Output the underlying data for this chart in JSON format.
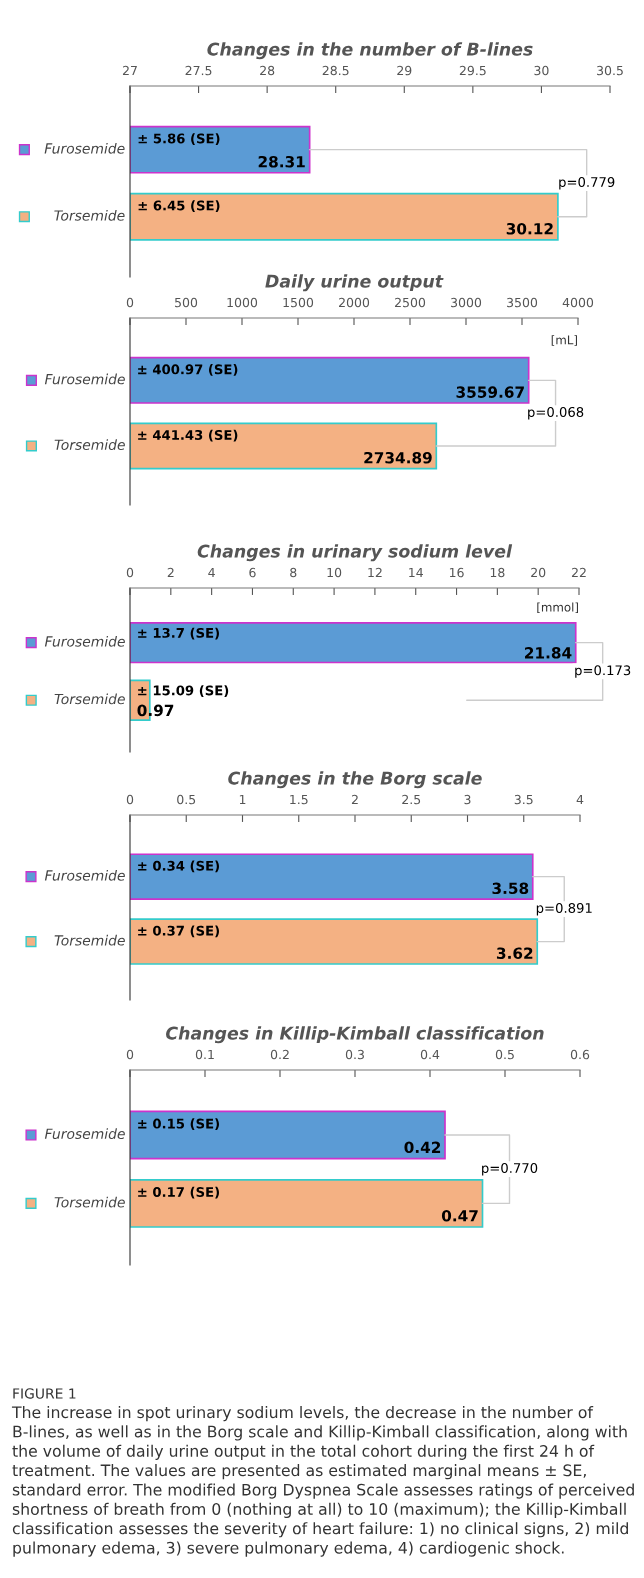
{
  "chart_data": [
    {
      "type": "bar",
      "orientation": "horizontal",
      "title": "Changes in the number of B-lines",
      "categories": [
        "Furosemide",
        "Torsemide"
      ],
      "values": [
        28.31,
        30.12
      ],
      "colors": [
        "#5b9bd5",
        "#f4b183"
      ],
      "xlim": [
        27,
        30.5
      ],
      "xticks": [
        27,
        27.5,
        28,
        28.5,
        29,
        29.5,
        30,
        30.5
      ],
      "data_labels": true,
      "annotations": [
        "± 5.86 (SE)",
        "± 6.45 (SE)",
        "p=0.779"
      ]
    },
    {
      "type": "bar",
      "orientation": "horizontal",
      "title": "Daily urine output",
      "categories": [
        "Furosemide",
        "Torsemide"
      ],
      "values": [
        3559.67,
        2734.89
      ],
      "colors": [
        "#5b9bd5",
        "#f4b183"
      ],
      "xlim": [
        0,
        4000
      ],
      "xticks": [
        0,
        500,
        1000,
        1500,
        2000,
        2500,
        3000,
        3500,
        4000
      ],
      "data_labels": true,
      "annotations": [
        "± 400.97 (SE)",
        "± 441.43 (SE)",
        "[mL]",
        "p=0.068"
      ]
    },
    {
      "type": "bar",
      "orientation": "horizontal",
      "title": "Changes in urinary sodium level",
      "categories": [
        "Furosemide",
        "Torsemide"
      ],
      "values": [
        21.84,
        0.97
      ],
      "colors": [
        "#5b9bd5",
        "#f4b183"
      ],
      "xlim": [
        0,
        22
      ],
      "xticks": [
        0,
        2,
        4,
        6,
        8,
        10,
        12,
        14,
        16,
        18,
        20,
        22
      ],
      "data_labels": true,
      "annotations": [
        "± 13.7 (SE)",
        "± 15.09 (SE)",
        "[mmol]",
        "p=0.173"
      ]
    },
    {
      "type": "bar",
      "orientation": "horizontal",
      "title": "Changes in the Borg scale",
      "categories": [
        "Furosemide",
        "Torsemide"
      ],
      "values": [
        3.58,
        3.62
      ],
      "colors": [
        "#5b9bd5",
        "#f4b183"
      ],
      "xlim": [
        0,
        4
      ],
      "xticks": [
        0,
        0.5,
        1,
        1.5,
        2,
        2.5,
        3,
        3.5,
        4
      ],
      "data_labels": true,
      "annotations": [
        "± 0.34 (SE)",
        "± 0.37 (SE)",
        "p=0.891"
      ]
    },
    {
      "type": "bar",
      "orientation": "horizontal",
      "title": "Changes in Killip-Kimball classification",
      "categories": [
        "Furosemide",
        "Torsemide"
      ],
      "values": [
        0.42,
        0.47
      ],
      "colors": [
        "#5b9bd5",
        "#f4b183"
      ],
      "xlim": [
        0,
        0.6
      ],
      "xticks": [
        0,
        0.1,
        0.2,
        0.3,
        0.4,
        0.5,
        0.6
      ],
      "data_labels": true,
      "annotations": [
        "± 0.15 (SE)",
        "± 0.17 (SE)",
        "p=0.770"
      ]
    },
    {
      "type": "other",
      "title": "FIGURE 1",
      "annotations": [
        "The increase in spot urinary sodium levels, the decrease in the number of B-lines, as well as in the Borg scale and Killip-Kimball classification, along with the volume of daily urine output in the total cohort during the first 24 h of treatment. The values are presented as estimated marginal means ± SE, standard error. The modified Borg Dyspnea Scale assesses ratings of perceived shortness of breath from 0 (nothing at all) to 10 (maximum); the Killip-Kimball classification assesses the severity of heart failure: 1) no clinical signs, 2) mild pulmonary edema, 3) severe pulmonary edema, 4) cardiogenic shock."
      ]
    }
  ]
}
